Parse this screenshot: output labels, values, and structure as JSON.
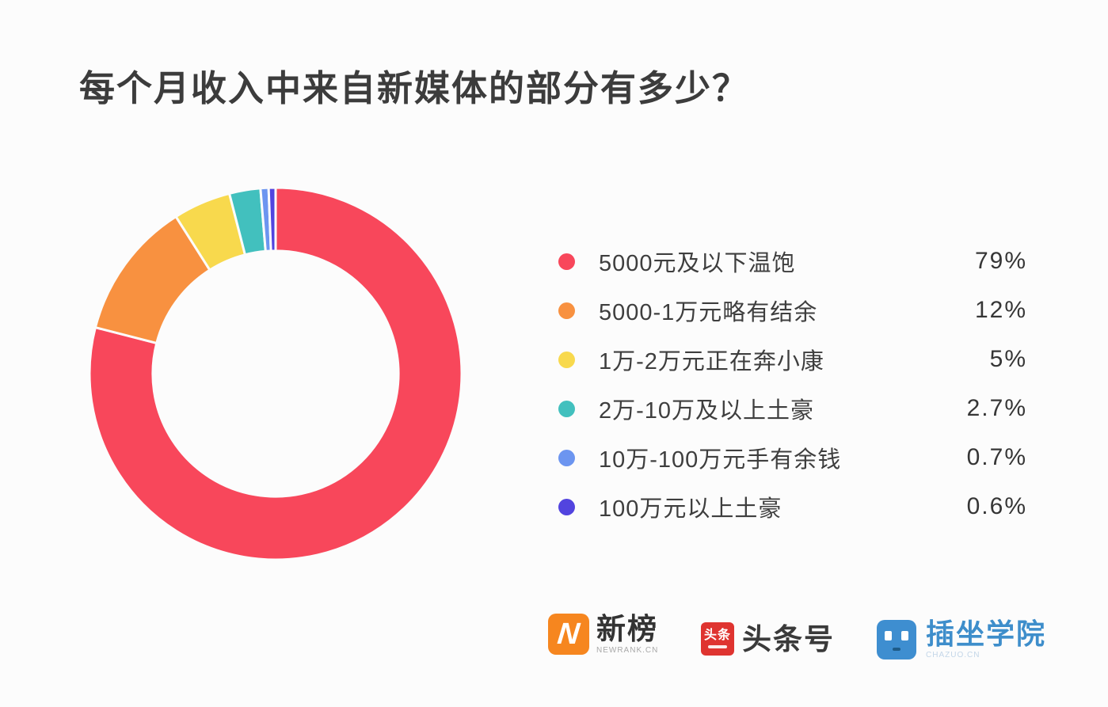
{
  "page": {
    "background": "#FCFCFC"
  },
  "title": {
    "text": "每个月收入中来自新媒体的部分有多少？"
  },
  "chart_data": {
    "type": "pie",
    "subtype": "donut",
    "title": "每个月收入中来自新媒体的部分有多少？",
    "unit": "%",
    "start_angle_deg": 0,
    "direction": "clockwise",
    "inner_radius_ratio": 0.66,
    "legend_position": "right",
    "gap_color": "#FCFCFC",
    "series": [
      {
        "label": "5000元及以下温饱",
        "value": 79,
        "display": "79%",
        "color": "#F8475B"
      },
      {
        "label": "5000-1万元略有结余",
        "value": 12,
        "display": "12%",
        "color": "#F89140"
      },
      {
        "label": "1万-2万元正在奔小康",
        "value": 5,
        "display": "5%",
        "color": "#F8D94D"
      },
      {
        "label": "2万-10万及以上土豪",
        "value": 2.7,
        "display": "2.7%",
        "color": "#42C0BE"
      },
      {
        "label": "10万-100万元手有余钱",
        "value": 0.7,
        "display": "0.7%",
        "color": "#6C95F0"
      },
      {
        "label": "100万元以上土豪",
        "value": 0.6,
        "display": "0.6%",
        "color": "#5244DF"
      }
    ]
  },
  "footer": {
    "logos": {
      "newrank": {
        "icon_letter": "N",
        "icon_bg": "#F6861F",
        "title": "新榜",
        "subtitle": "NEWRANK.CN"
      },
      "toutiao": {
        "icon_chars": "头条",
        "icon_bg": "#DF3430",
        "title": "头条号"
      },
      "chazuo": {
        "icon_bg": "#3E8ED0",
        "title": "插坐学院",
        "subtitle": "CHAZUO.CN",
        "title_color": "#3E8ECB"
      }
    }
  }
}
